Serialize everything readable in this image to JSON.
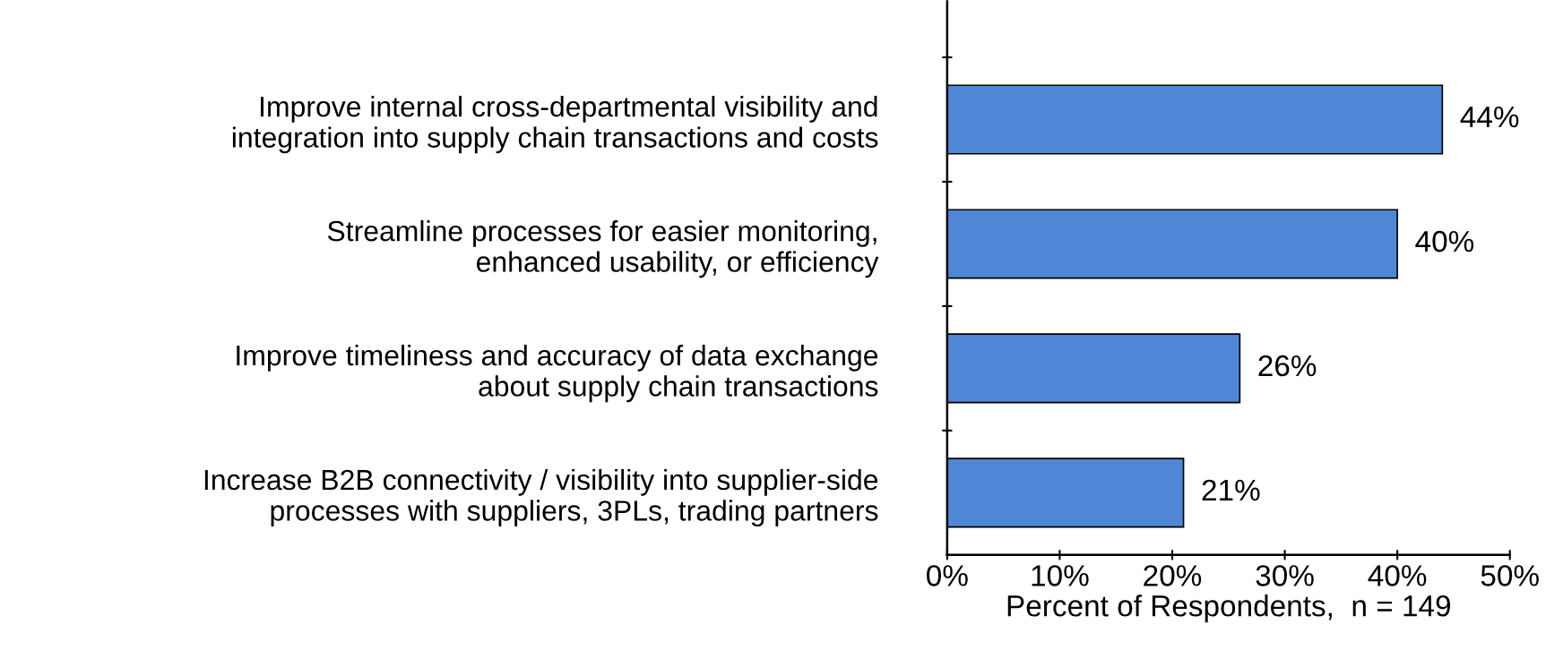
{
  "chart_data": {
    "type": "bar",
    "orientation": "horizontal",
    "categories": [
      "Improve internal cross-departmental visibility and\nintegration into supply chain transactions and costs",
      "Streamline processes for easier monitoring,\nenhanced usability, or efficiency",
      "Improve timeliness and accuracy of data exchange\nabout supply chain transactions",
      "Increase B2B connectivity / visibility into supplier-side\nprocesses with suppliers, 3PLs, trading partners"
    ],
    "values": [
      44,
      40,
      26,
      21
    ],
    "value_labels": [
      "44%",
      "40%",
      "26%",
      "21%"
    ],
    "color": "#4f86d5",
    "xlabel": "Percent of Respondents,  n = 149",
    "xlim": [
      0,
      50
    ],
    "xticks": [
      {
        "value": 0,
        "label": "0%"
      },
      {
        "value": 10,
        "label": "10%"
      },
      {
        "value": 20,
        "label": "20%"
      },
      {
        "value": 30,
        "label": "30%"
      },
      {
        "value": 40,
        "label": "40%"
      },
      {
        "value": 50,
        "label": "50%"
      }
    ],
    "grid": false,
    "legend": false
  }
}
